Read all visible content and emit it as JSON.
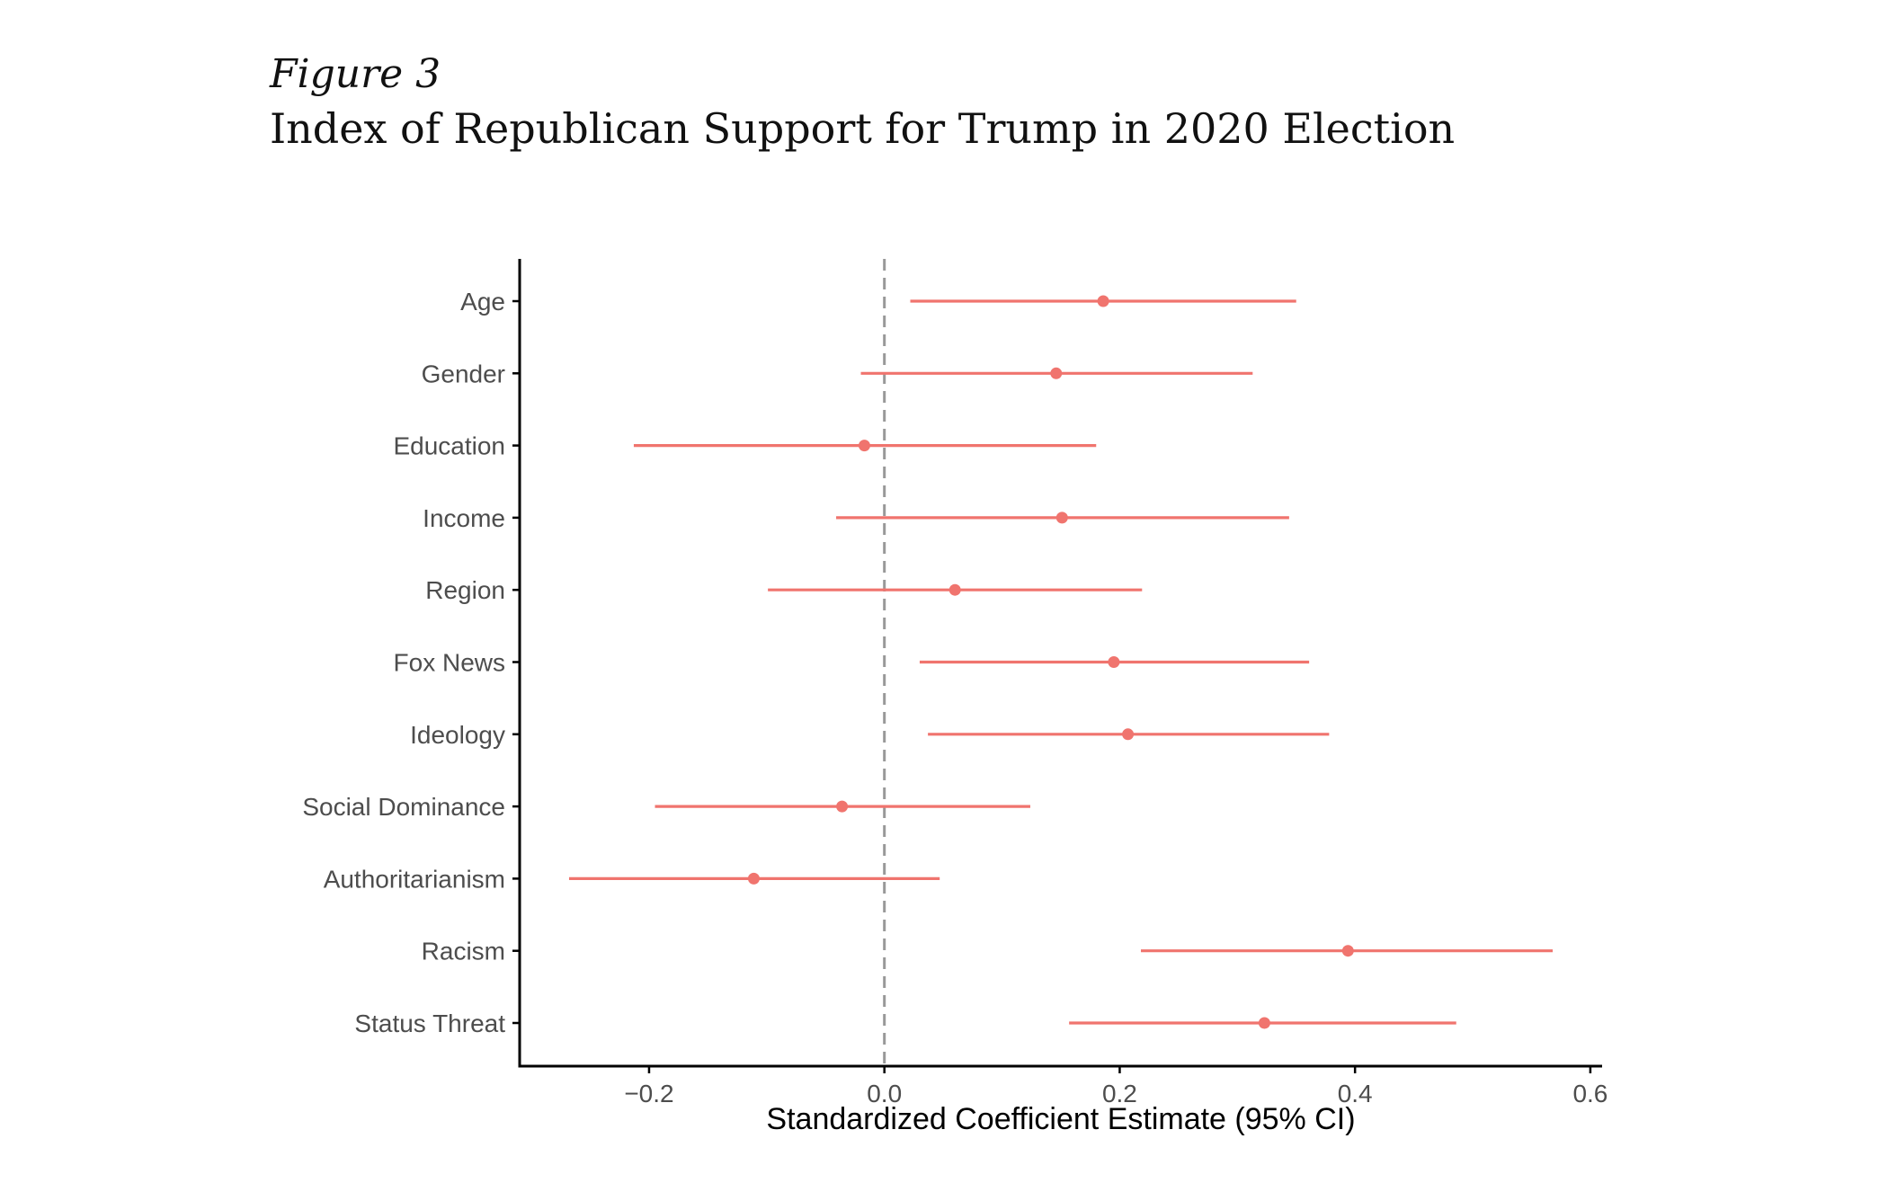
{
  "figure": {
    "label": "Figure 3",
    "title": "Index of Republican Support for Trump in 2020 Election"
  },
  "colors": {
    "marker": "#f0746e",
    "axis": "#000000",
    "reference_line": "#999999",
    "tick_text": "#4d4d4d"
  },
  "chart_data": {
    "type": "scatter",
    "subtype": "coefficient-plot",
    "title": "",
    "xlabel": "Standardized Coefficient Estimate (95% CI)",
    "ylabel": "",
    "xlim": [
      -0.31,
      0.61
    ],
    "xticks": [
      {
        "value": -0.2,
        "label": "−0.2"
      },
      {
        "value": 0.0,
        "label": "0.0"
      },
      {
        "value": 0.2,
        "label": "0.2"
      },
      {
        "value": 0.4,
        "label": "0.4"
      },
      {
        "value": 0.6,
        "label": "0.6"
      }
    ],
    "reference_line": {
      "x": 0,
      "style": "dashed"
    },
    "grid": false,
    "legend": "none",
    "categories": [
      "Age",
      "Gender",
      "Education",
      "Income",
      "Region",
      "Fox News",
      "Ideology",
      "Social Dominance",
      "Authoritarianism",
      "Racism",
      "Status Threat"
    ],
    "estimates": [
      0.186,
      0.146,
      -0.017,
      0.151,
      0.06,
      0.195,
      0.207,
      -0.036,
      -0.111,
      0.394,
      0.323
    ],
    "ci_low": [
      0.022,
      -0.02,
      -0.213,
      -0.041,
      -0.099,
      0.03,
      0.037,
      -0.195,
      -0.268,
      0.218,
      0.157
    ],
    "ci_high": [
      0.35,
      0.313,
      0.18,
      0.344,
      0.219,
      0.361,
      0.378,
      0.124,
      0.047,
      0.568,
      0.486
    ]
  }
}
